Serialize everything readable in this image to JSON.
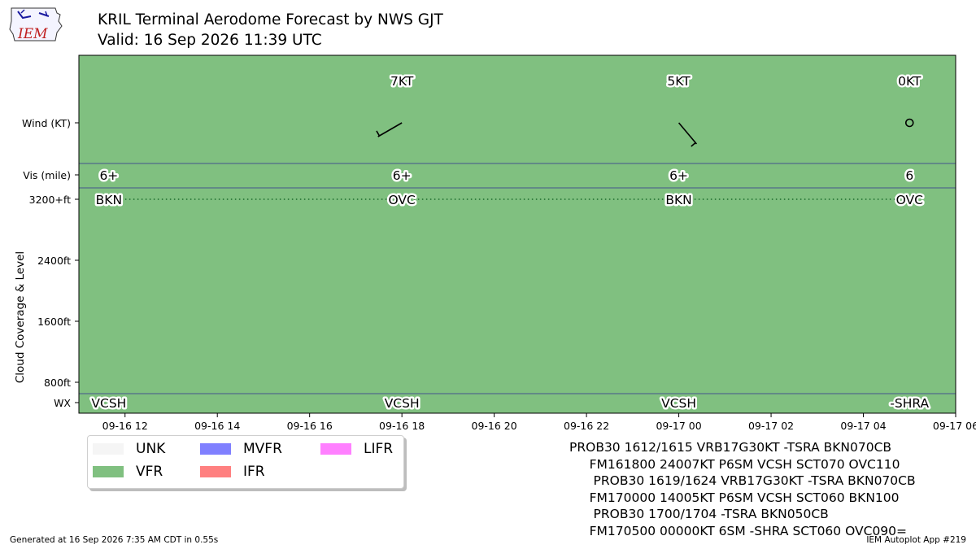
{
  "title": {
    "line1": "KRIL Terminal Aerodome Forecast by NWS GJT",
    "line2": "Valid: 16 Sep 2026 11:39 UTC"
  },
  "logo_text": "IEM",
  "colors": {
    "UNK": "#f5f5f5",
    "VFR": "#80c080",
    "MVFR": "#8080ff",
    "IFR": "#ff8080",
    "LIFR": "#ff80ff",
    "row_divider": "#2f2f8f"
  },
  "chart_data": {
    "type": "timeline",
    "x_ticks": [
      "09-16 12",
      "09-16 14",
      "09-16 16",
      "09-16 18",
      "09-16 20",
      "09-16 22",
      "09-17 00",
      "09-17 02",
      "09-17 04",
      "09-17 06"
    ],
    "x_start": "2026-09-16T11:00Z",
    "x_end": "2026-09-17T06:00Z",
    "rows": {
      "wind": "Wind (KT)",
      "vis": "Vis (mile)",
      "wx": "WX"
    },
    "y_axis_label": "Cloud Coverage & Level",
    "cloud_ticks": [
      "800ft",
      "1600ft",
      "2400ft",
      "3200+ft"
    ],
    "cloud_tick_values": [
      800,
      1600,
      2400,
      3200
    ],
    "flight_category": "VFR",
    "periods": [
      {
        "time": "2026-09-16T11:39Z",
        "wind": "",
        "wind_dir": null,
        "wind_kt": null,
        "vis": "6+",
        "cloud": "BKN",
        "wx": "VCSH"
      },
      {
        "time": "2026-09-16T18:00Z",
        "wind": "7KT",
        "wind_dir": 240,
        "wind_kt": 7,
        "vis": "6+",
        "cloud": "OVC",
        "wx": "VCSH"
      },
      {
        "time": "2026-09-17T00:00Z",
        "wind": "5KT",
        "wind_dir": 140,
        "wind_kt": 5,
        "vis": "6+",
        "cloud": "BKN",
        "wx": "VCSH"
      },
      {
        "time": "2026-09-17T05:00Z",
        "wind": "0KT",
        "wind_dir": 0,
        "wind_kt": 0,
        "vis": "6",
        "cloud": "OVC",
        "wx": "-SHRA"
      }
    ]
  },
  "legend": [
    {
      "label": "UNK",
      "color": "#f5f5f5"
    },
    {
      "label": "VFR",
      "color": "#80c080"
    },
    {
      "label": "MVFR",
      "color": "#8080ff"
    },
    {
      "label": "IFR",
      "color": "#ff8080"
    },
    {
      "label": "LIFR",
      "color": "#ff80ff"
    }
  ],
  "taf_text": [
    "PROB30 1612/1615 VRB17G30KT -TSRA BKN070CB",
    "     FM161800 24007KT P6SM VCSH SCT070 OVC110",
    "      PROB30 1619/1624 VRB17G30KT -TSRA BKN070CB",
    "     FM170000 14005KT P6SM VCSH SCT060 BKN100",
    "      PROB30 1700/1704 -TSRA BKN050CB",
    "     FM170500 00000KT 6SM -SHRA SCT060 OVC090="
  ],
  "footer": {
    "left": "Generated at 16 Sep 2026 7:35 AM CDT in 0.55s",
    "right": "IEM Autoplot App #219"
  }
}
